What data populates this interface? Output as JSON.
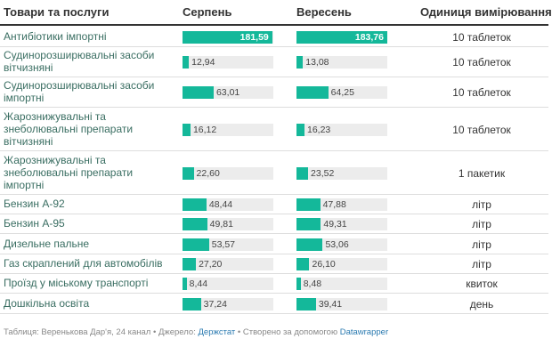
{
  "header": {
    "col_item": "Товари та послуги",
    "col_aug": "Серпень",
    "col_sep": "Вересень",
    "col_unit": "Одиниця вимірювання"
  },
  "chart_data": {
    "type": "table",
    "series": [
      {
        "name": "Серпень",
        "values": [
          181.59,
          12.94,
          63.01,
          16.12,
          22.6,
          48.44,
          49.81,
          53.57,
          27.2,
          8.44,
          37.24
        ]
      },
      {
        "name": "Вересень",
        "values": [
          183.76,
          13.08,
          64.25,
          16.23,
          23.52,
          47.88,
          49.31,
          53.06,
          26.1,
          8.48,
          39.41
        ]
      }
    ],
    "range": [
      0,
      183.76
    ],
    "rows": [
      {
        "item": "Антибіотики імпортні",
        "aug": "181,59",
        "sep": "183,76",
        "unit": "10 таблеток"
      },
      {
        "item": "Судинорозширювальні засоби вітчизняні",
        "aug": "12,94",
        "sep": "13,08",
        "unit": "10 таблеток"
      },
      {
        "item": "Судинорозширювальні засоби імпортні",
        "aug": "63,01",
        "sep": "64,25",
        "unit": "10 таблеток"
      },
      {
        "item": "Жарознижувальні та знеболювальні препарати вітчизняні",
        "aug": "16,12",
        "sep": "16,23",
        "unit": "10 таблеток"
      },
      {
        "item": "Жарознижувальні та знеболювальні препарати імпортні",
        "aug": "22,60",
        "sep": "23,52",
        "unit": "1 пакетик"
      },
      {
        "item": "Бензин А-92",
        "aug": "48,44",
        "sep": "47,88",
        "unit": "літр"
      },
      {
        "item": "Бензин А-95",
        "aug": "49,81",
        "sep": "49,31",
        "unit": "літр"
      },
      {
        "item": "Дизельне пальне",
        "aug": "53,57",
        "sep": "53,06",
        "unit": "літр"
      },
      {
        "item": "Газ скраплений для автомобілів",
        "aug": "27,20",
        "sep": "26,10",
        "unit": "літр"
      },
      {
        "item": "Проїзд у міському транспорті",
        "aug": "8,44",
        "sep": "8,48",
        "unit": "квиток"
      },
      {
        "item": "Дошкільна освіта",
        "aug": "37,24",
        "sep": "39,41",
        "unit": "день"
      }
    ]
  },
  "footer": {
    "prefix": "Таблиця: Веренькова Дар'я, 24 канал • Джерело: ",
    "source": "Держстат",
    "middle": " • Створено за допомогою ",
    "tool": "Datawrapper"
  },
  "colors": {
    "bar": "#14b89a",
    "track": "#ececec",
    "label": "#3a6e62",
    "link": "#2a7ab0"
  }
}
